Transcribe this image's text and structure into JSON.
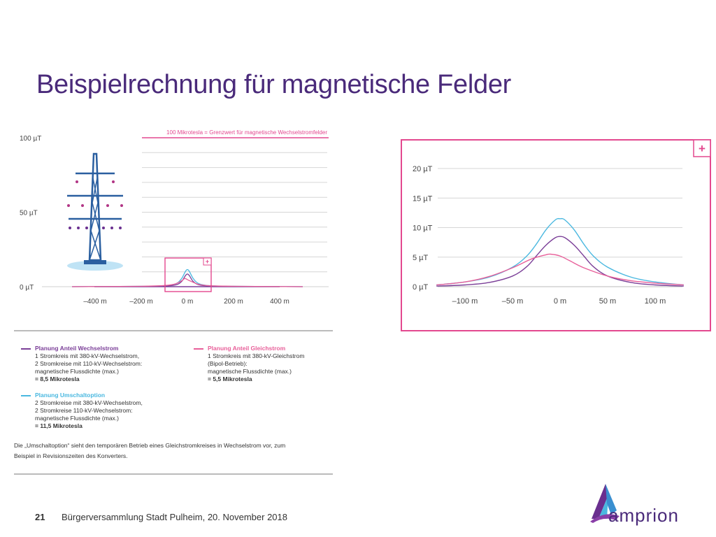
{
  "slide": {
    "title": "Beispielrechnung für magnetische Felder",
    "page_number": "21",
    "footer": "Bürgerversammlung Stadt Pulheim, 20. November 2018",
    "logo_text": "amprion"
  },
  "colors": {
    "title": "#4a2a7a",
    "wechselstrom": "#7b3f98",
    "gleichstrom": "#e8609a",
    "umschaltoption": "#4ab8e0",
    "frame": "#e3488f"
  },
  "limit_label": "100 Mikrotesla = Grenzwert für magnetische Wechselstromfelder",
  "legend": {
    "wechsel": {
      "head": "Planung Anteil Wechselstrom",
      "lines": [
        "1 Stromkreis mit 380-kV-Wechselstrom,",
        "2 Stromkreise mit 110-kV-Wechselstrom:",
        "magnetische Flussdichte (max.)"
      ],
      "value": "= 8,5 Mikrotesla"
    },
    "gleich": {
      "head": "Planung Anteil Gleichstrom",
      "lines": [
        "1 Stromkreis mit 380-kV-Gleichstrom",
        "(Bipol-Betrieb):",
        "magnetische Flussdichte (max.)"
      ],
      "value": "= 5,5 Mikrotesla"
    },
    "umschalt": {
      "head": "Planung Umschaltoption",
      "lines": [
        "2 Stromkreise mit 380-kV-Wechselstrom,",
        "2 Stromkreise 110-kV-Wechselstrom:",
        "magnetische Flussdichte (max.)"
      ],
      "value": "= 11,5 Mikrotesla"
    }
  },
  "note_lines": [
    "Die „Umschaltoption“ sieht den temporären Betrieb eines Gleichstromkreises in Wechselstrom vor, zum",
    "Beispiel in Revisionszeiten des Konverters."
  ],
  "chart_data": [
    {
      "type": "line",
      "xlabel": "",
      "ylabel": "",
      "xlim": [
        -500,
        500
      ],
      "ylim": [
        0,
        100
      ],
      "x_ticks": [
        -400,
        -200,
        0,
        200,
        400
      ],
      "x_tick_labels": [
        "–400 m",
        "–200 m",
        "0 m",
        "200 m",
        "400 m"
      ],
      "y_ticks": [
        0,
        50,
        100
      ],
      "y_tick_labels": [
        "0 µT",
        "50 µT",
        "100 µT"
      ],
      "grid": true,
      "series": [
        {
          "name": "Planung Umschaltoption",
          "color": "#4ab8e0",
          "x": [
            -500,
            -200,
            -100,
            -50,
            -25,
            0,
            25,
            50,
            100,
            200,
            500
          ],
          "y": [
            0,
            0.3,
            0.6,
            2.0,
            5.5,
            11.5,
            5.5,
            2.0,
            0.6,
            0.3,
            0
          ]
        },
        {
          "name": "Planung Anteil Wechselstrom",
          "color": "#7b3f98",
          "x": [
            -500,
            -200,
            -100,
            -50,
            -25,
            0,
            25,
            50,
            100,
            200,
            500
          ],
          "y": [
            0,
            0.2,
            0.4,
            1.2,
            3.5,
            8.5,
            3.5,
            1.2,
            0.4,
            0.2,
            0
          ]
        },
        {
          "name": "Planung Anteil Gleichstrom",
          "color": "#e8609a",
          "x": [
            -500,
            -200,
            -100,
            -50,
            -20,
            -10,
            10,
            50,
            100,
            200,
            500
          ],
          "y": [
            0,
            0.3,
            0.8,
            2.0,
            4.5,
            5.5,
            4.0,
            1.5,
            0.6,
            0.3,
            0
          ]
        }
      ]
    },
    {
      "type": "line",
      "xlabel": "",
      "ylabel": "",
      "xlim": [
        -130,
        130
      ],
      "ylim": [
        0,
        20
      ],
      "x_ticks": [
        -100,
        -50,
        0,
        50,
        100
      ],
      "x_tick_labels": [
        "–100 m",
        "–50 m",
        "0 m",
        "50 m",
        "100 m"
      ],
      "y_ticks": [
        0,
        5,
        10,
        15,
        20
      ],
      "y_tick_labels": [
        "0 µT",
        "5 µT",
        "10 µT",
        "15 µT",
        "20 µT"
      ],
      "grid": true,
      "series": [
        {
          "name": "Planung Umschaltoption",
          "color": "#4ab8e0",
          "x": [
            -130,
            -100,
            -75,
            -50,
            -35,
            -25,
            -15,
            -5,
            0,
            5,
            15,
            25,
            35,
            50,
            75,
            100,
            130
          ],
          "y": [
            0.3,
            0.8,
            1.6,
            3.3,
            5.2,
            7.2,
            9.6,
            11.3,
            11.5,
            11.3,
            9.6,
            7.2,
            5.2,
            3.3,
            1.6,
            0.8,
            0.3
          ]
        },
        {
          "name": "Planung Anteil Wechselstrom",
          "color": "#7b3f98",
          "x": [
            -130,
            -100,
            -75,
            -50,
            -35,
            -25,
            -15,
            -5,
            0,
            5,
            15,
            25,
            35,
            50,
            75,
            100,
            130
          ],
          "y": [
            0.1,
            0.3,
            0.7,
            1.8,
            3.4,
            5.2,
            7.0,
            8.3,
            8.5,
            8.3,
            7.0,
            5.2,
            3.4,
            1.8,
            0.7,
            0.3,
            0.1
          ]
        },
        {
          "name": "Planung Anteil Gleichstrom",
          "color": "#e8609a",
          "x": [
            -130,
            -100,
            -75,
            -50,
            -30,
            -15,
            -10,
            0,
            10,
            25,
            50,
            75,
            100,
            130
          ],
          "y": [
            0.3,
            0.8,
            1.7,
            3.2,
            4.7,
            5.4,
            5.5,
            5.2,
            4.4,
            3.2,
            1.8,
            1.0,
            0.6,
            0.3
          ]
        }
      ]
    }
  ]
}
